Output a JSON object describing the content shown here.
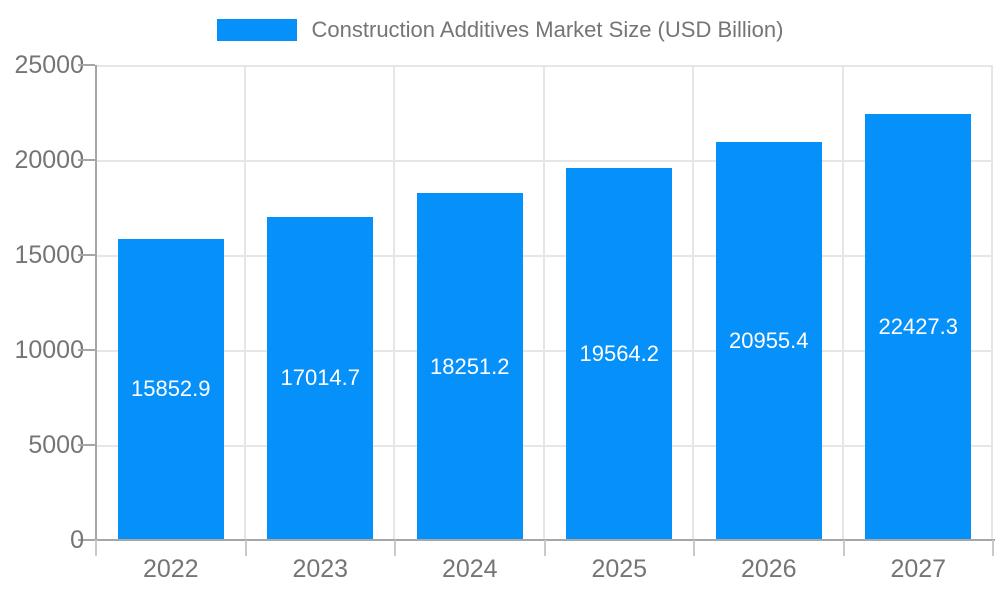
{
  "chart_data": {
    "type": "bar",
    "title": "Construction Additives Market Size (USD Billion)",
    "categories": [
      "2022",
      "2023",
      "2024",
      "2025",
      "2026",
      "2027"
    ],
    "values": [
      15852.9,
      17014.7,
      18251.2,
      19564.2,
      20955.4,
      22427.3
    ],
    "data_labels": [
      "15852.9",
      "17014.7",
      "18251.2",
      "19564.2",
      "20955.4",
      "22427.3"
    ],
    "xlabel": "",
    "ylabel": "",
    "ylim": [
      0,
      25000
    ],
    "yticks": [
      0,
      5000,
      10000,
      15000,
      20000,
      25000
    ],
    "ytick_labels": [
      "0",
      "5000",
      "10000",
      "15000",
      "20000",
      "25000"
    ],
    "grid": true,
    "legend": {
      "position": "top",
      "label": "Construction Additives Market Size (USD Billion)"
    },
    "colors": {
      "bar": "#0590FA",
      "grid": "#e6e6e6",
      "axis": "#a6a6a6",
      "tick": "#c9c9c9",
      "label": "#757575",
      "value_label": "#ffffff",
      "background": "#ffffff"
    }
  }
}
